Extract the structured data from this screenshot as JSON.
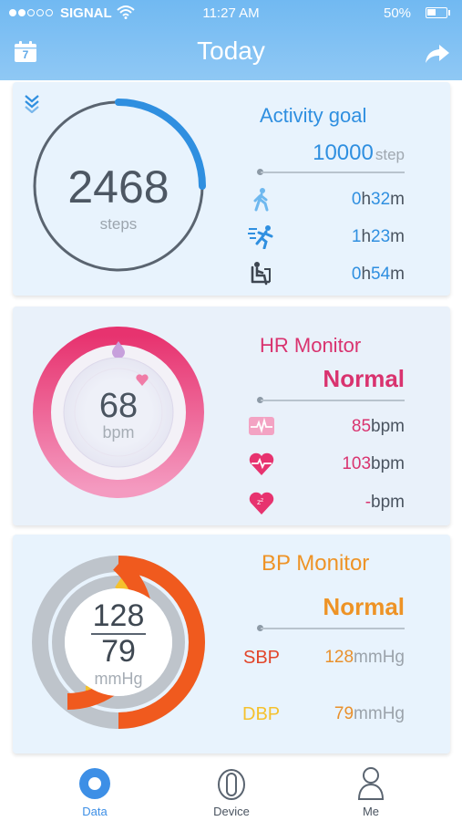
{
  "status_bar": {
    "carrier": "SIGNAL",
    "time": "11:27 AM",
    "battery": "50%"
  },
  "header": {
    "title": "Today",
    "calendar_day": "7"
  },
  "activity": {
    "title": "Activity goal",
    "steps": "2468",
    "steps_unit": "steps",
    "goal_value": "10000",
    "goal_unit": "step",
    "progress_fraction": 0.25,
    "rows": [
      {
        "icon": "walking-icon",
        "h": "0",
        "h_unit": "h",
        "m": "32",
        "m_unit": "m"
      },
      {
        "icon": "running-icon",
        "h": "1",
        "h_unit": "h",
        "m": "23",
        "m_unit": "m"
      },
      {
        "icon": "sitting-icon",
        "h": "0",
        "h_unit": "h",
        "m": "54",
        "m_unit": "m"
      }
    ]
  },
  "hr": {
    "title": "HR Monitor",
    "status": "Normal",
    "value": "68",
    "unit": "bpm",
    "rows": [
      {
        "icon": "ecg-icon",
        "value": "85",
        "unit": "bpm"
      },
      {
        "icon": "heart-pulse-icon",
        "value": "103",
        "unit": "bpm"
      },
      {
        "icon": "heart-sleep-icon",
        "value": "-",
        "unit": "bpm"
      }
    ]
  },
  "bp": {
    "title": "BP Monitor",
    "status": "Normal",
    "systolic": "128",
    "diastolic": "79",
    "unit": "mmHg",
    "sbp_label": "SBP",
    "sbp_value": "128",
    "sbp_unit": "mmHg",
    "dbp_label": "DBP",
    "dbp_value": "79",
    "dbp_unit": "mmHg"
  },
  "tabs": [
    {
      "label": "Data",
      "active": true
    },
    {
      "label": "Device",
      "active": false
    },
    {
      "label": "Me",
      "active": false
    }
  ],
  "colors": {
    "header": "#7dbff3",
    "activity_accent": "#2f8fe0",
    "hr_accent": "#d9336f",
    "bp_orange": "#f05a1e",
    "bp_yellow": "#f5c12d",
    "tab_active": "#3d8fe6"
  }
}
